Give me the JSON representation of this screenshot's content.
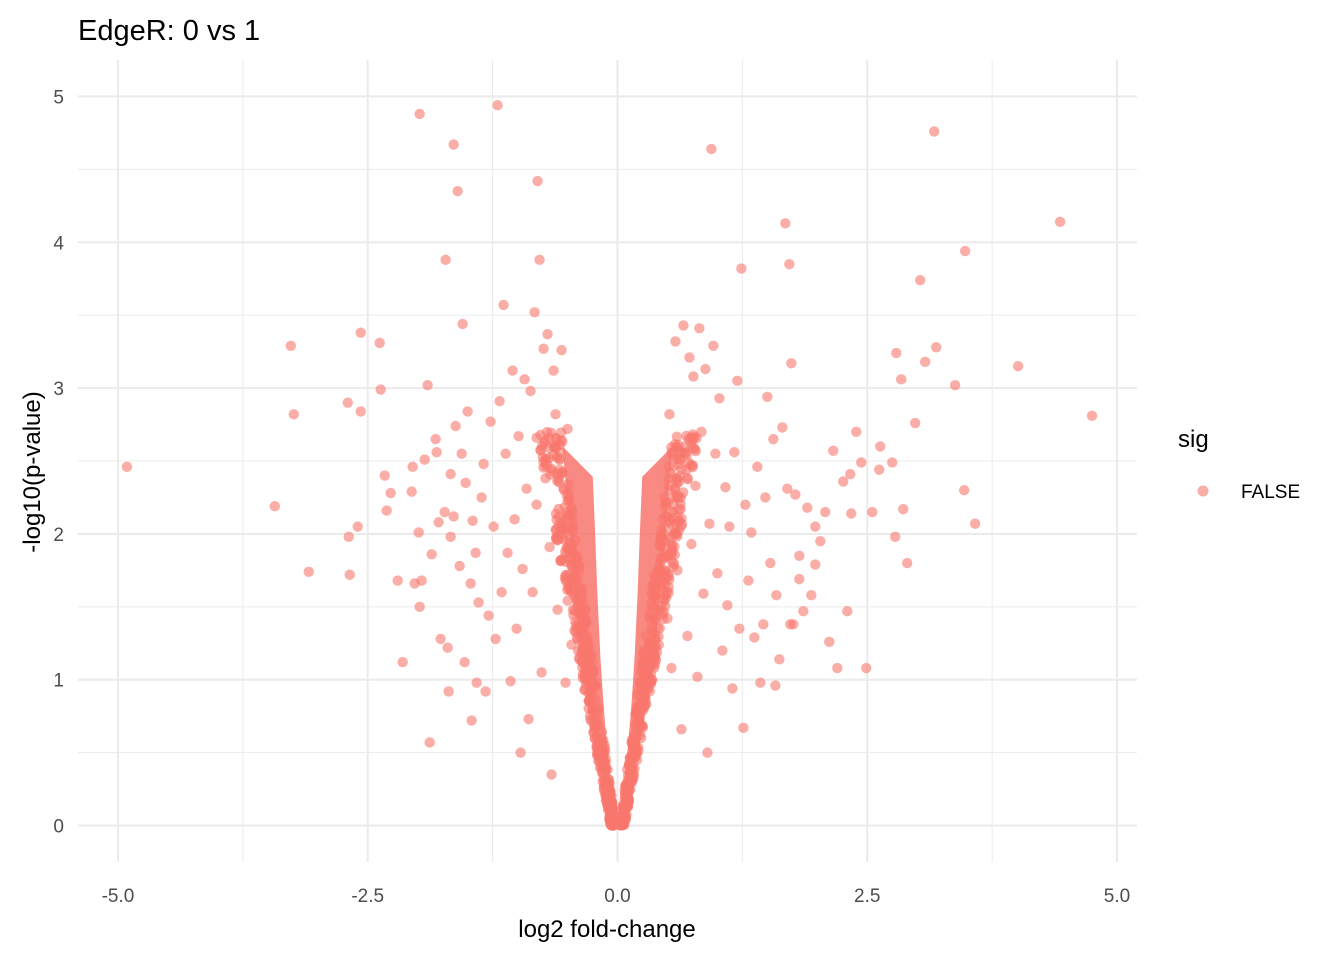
{
  "chart_data": {
    "type": "scatter",
    "title": "EdgeR: 0 vs 1",
    "xlabel": "log2 fold-change",
    "ylabel": "-log10(p-value)",
    "xlim": [
      -5.4,
      5.2
    ],
    "ylim": [
      -0.25,
      5.25
    ],
    "x_ticks": [
      -5.0,
      -2.5,
      0.0,
      2.5,
      5.0
    ],
    "x_tick_labels": [
      "-5.0",
      "-2.5",
      "0.0",
      "2.5",
      "5.0"
    ],
    "y_ticks": [
      0,
      1,
      2,
      3,
      4,
      5
    ],
    "y_tick_labels": [
      "0",
      "1",
      "2",
      "3",
      "4",
      "5"
    ],
    "grid": true,
    "legend": {
      "title": "sig",
      "position": "right",
      "entries": [
        {
          "label": "FALSE",
          "color": "#F8766D"
        }
      ]
    },
    "point_color": "#F8766D",
    "point_alpha": 0.6,
    "series": [
      {
        "name": "FALSE",
        "points": [
          [
            -4.91,
            2.46
          ],
          [
            -3.43,
            2.19
          ],
          [
            -3.27,
            3.29
          ],
          [
            -3.24,
            2.82
          ],
          [
            -3.09,
            1.74
          ],
          [
            -2.7,
            2.9
          ],
          [
            -2.69,
            1.98
          ],
          [
            -2.68,
            1.72
          ],
          [
            -2.57,
            3.38
          ],
          [
            -2.57,
            2.84
          ],
          [
            -2.38,
            3.31
          ],
          [
            -2.37,
            2.99
          ],
          [
            -2.33,
            2.4
          ],
          [
            -2.31,
            2.16
          ],
          [
            -2.27,
            2.28
          ],
          [
            -2.2,
            1.68
          ],
          [
            -2.06,
            2.29
          ],
          [
            -2.05,
            2.46
          ],
          [
            -2.03,
            1.66
          ],
          [
            -1.99,
            2.01
          ],
          [
            -1.98,
            1.5
          ],
          [
            -1.96,
            1.68
          ],
          [
            -1.93,
            2.51
          ],
          [
            -1.9,
            3.02
          ],
          [
            -1.88,
            0.57
          ],
          [
            -1.86,
            1.86
          ],
          [
            -1.82,
            2.65
          ],
          [
            -1.81,
            2.56
          ],
          [
            -1.79,
            2.08
          ],
          [
            -1.77,
            1.28
          ],
          [
            -1.73,
            2.15
          ],
          [
            -1.72,
            3.88
          ],
          [
            -1.7,
            1.22
          ],
          [
            -1.69,
            0.92
          ],
          [
            -1.67,
            2.41
          ],
          [
            -1.67,
            1.98
          ],
          [
            -1.64,
            2.12
          ],
          [
            -1.62,
            2.74
          ],
          [
            -1.6,
            4.35
          ],
          [
            -1.58,
            1.78
          ],
          [
            -1.56,
            2.55
          ],
          [
            -1.55,
            3.44
          ],
          [
            -1.53,
            1.12
          ],
          [
            -1.52,
            2.35
          ],
          [
            -1.5,
            2.84
          ],
          [
            -1.47,
            1.66
          ],
          [
            -1.45,
            2.09
          ],
          [
            -1.42,
            1.87
          ],
          [
            -1.41,
            0.98
          ],
          [
            -1.39,
            1.53
          ],
          [
            -1.36,
            2.25
          ],
          [
            -1.34,
            2.48
          ],
          [
            -1.32,
            0.92
          ],
          [
            -1.29,
            1.44
          ],
          [
            -1.27,
            2.77
          ],
          [
            -1.24,
            2.05
          ],
          [
            -1.22,
            1.28
          ],
          [
            -1.2,
            4.94
          ],
          [
            -1.18,
            2.91
          ],
          [
            -1.16,
            1.6
          ],
          [
            -1.14,
            3.57
          ],
          [
            -1.12,
            2.55
          ],
          [
            -1.1,
            1.87
          ],
          [
            -1.07,
            0.99
          ],
          [
            -1.05,
            3.12
          ],
          [
            -1.03,
            2.1
          ],
          [
            -1.01,
            1.35
          ],
          [
            -0.99,
            2.67
          ],
          [
            -0.97,
            0.5
          ],
          [
            -0.95,
            1.76
          ],
          [
            -0.93,
            3.06
          ],
          [
            -0.91,
            2.31
          ],
          [
            -0.89,
            0.73
          ],
          [
            -0.87,
            2.98
          ],
          [
            -0.85,
            1.6
          ],
          [
            -0.83,
            3.52
          ],
          [
            -0.81,
            2.2
          ],
          [
            -0.8,
            4.42
          ],
          [
            -0.78,
            3.88
          ],
          [
            -0.76,
            1.05
          ],
          [
            -0.74,
            3.27
          ],
          [
            -0.72,
            2.64
          ],
          [
            -0.7,
            3.37
          ],
          [
            -0.68,
            1.91
          ],
          [
            -0.66,
            0.35
          ],
          [
            -0.64,
            3.12
          ],
          [
            -0.62,
            2.82
          ],
          [
            -0.6,
            1.48
          ],
          [
            -0.58,
            2.44
          ],
          [
            -0.56,
            3.26
          ],
          [
            -0.54,
            2.0
          ],
          [
            -0.52,
            0.98
          ],
          [
            -0.5,
            2.72
          ],
          [
            -0.48,
            1.67
          ],
          [
            -0.46,
            1.24
          ],
          [
            -1.98,
            4.88
          ],
          [
            -1.64,
            4.67
          ],
          [
            -2.6,
            2.05
          ],
          [
            -2.15,
            1.12
          ],
          [
            -1.46,
            0.72
          ]
        ]
      }
    ],
    "dense_core": {
      "left_arm": [
        [
          -0.02,
          0.02
        ],
        [
          -0.12,
          0.25
        ],
        [
          -0.22,
          0.55
        ],
        [
          -0.3,
          0.85
        ],
        [
          -0.38,
          1.25
        ],
        [
          -0.45,
          1.75
        ],
        [
          -0.5,
          2.2
        ],
        [
          -0.55,
          2.6
        ]
      ],
      "right_arm": [
        [
          0.02,
          0.02
        ],
        [
          0.12,
          0.25
        ],
        [
          0.22,
          0.55
        ],
        [
          0.3,
          0.85
        ],
        [
          0.38,
          1.25
        ],
        [
          0.45,
          1.75
        ],
        [
          0.5,
          2.2
        ],
        [
          0.55,
          2.6
        ]
      ]
    },
    "right_points": [
      [
        0.48,
        2.21
      ],
      [
        0.5,
        1.42
      ],
      [
        0.52,
        2.82
      ],
      [
        0.54,
        1.08
      ],
      [
        0.56,
        2.46
      ],
      [
        0.58,
        3.32
      ],
      [
        0.6,
        1.75
      ],
      [
        0.62,
        2.09
      ],
      [
        0.64,
        0.66
      ],
      [
        0.66,
        3.43
      ],
      [
        0.68,
        2.6
      ],
      [
        0.7,
        1.3
      ],
      [
        0.72,
        3.21
      ],
      [
        0.74,
        1.93
      ],
      [
        0.76,
        3.08
      ],
      [
        0.78,
        2.33
      ],
      [
        0.8,
        1.02
      ],
      [
        0.82,
        3.41
      ],
      [
        0.84,
        2.7
      ],
      [
        0.86,
        1.59
      ],
      [
        0.88,
        3.13
      ],
      [
        0.9,
        0.5
      ],
      [
        0.92,
        2.07
      ],
      [
        0.94,
        4.64
      ],
      [
        0.96,
        3.29
      ],
      [
        0.98,
        2.55
      ],
      [
        1.0,
        1.73
      ],
      [
        1.02,
        2.93
      ],
      [
        1.05,
        1.2
      ],
      [
        1.08,
        2.32
      ],
      [
        1.1,
        1.51
      ],
      [
        1.12,
        2.05
      ],
      [
        1.15,
        0.94
      ],
      [
        1.17,
        2.56
      ],
      [
        1.2,
        3.05
      ],
      [
        1.22,
        1.35
      ],
      [
        1.24,
        3.82
      ],
      [
        1.26,
        0.67
      ],
      [
        1.28,
        2.2
      ],
      [
        1.31,
        1.68
      ],
      [
        1.34,
        2.01
      ],
      [
        1.37,
        1.29
      ],
      [
        1.4,
        2.46
      ],
      [
        1.43,
        0.98
      ],
      [
        1.46,
        1.38
      ],
      [
        1.48,
        2.25
      ],
      [
        1.5,
        2.94
      ],
      [
        1.53,
        1.8
      ],
      [
        1.56,
        2.65
      ],
      [
        1.59,
        1.58
      ],
      [
        1.62,
        1.14
      ],
      [
        1.65,
        2.73
      ],
      [
        1.68,
        4.13
      ],
      [
        1.7,
        2.31
      ],
      [
        1.72,
        3.85
      ],
      [
        1.74,
        3.17
      ],
      [
        1.76,
        1.38
      ],
      [
        1.78,
        2.27
      ],
      [
        1.82,
        1.85
      ],
      [
        1.86,
        1.47
      ],
      [
        1.9,
        2.18
      ],
      [
        1.94,
        1.58
      ],
      [
        1.98,
        2.05
      ],
      [
        2.03,
        1.95
      ],
      [
        2.08,
        2.15
      ],
      [
        2.12,
        1.26
      ],
      [
        2.16,
        2.57
      ],
      [
        2.2,
        1.08
      ],
      [
        2.26,
        2.36
      ],
      [
        2.3,
        1.47
      ],
      [
        2.34,
        2.14
      ],
      [
        2.39,
        2.7
      ],
      [
        2.44,
        2.49
      ],
      [
        2.49,
        1.08
      ],
      [
        2.55,
        2.15
      ],
      [
        2.62,
        2.44
      ],
      [
        2.75,
        2.49
      ],
      [
        2.78,
        1.98
      ],
      [
        2.79,
        3.24
      ],
      [
        2.84,
        3.06
      ],
      [
        2.86,
        2.17
      ],
      [
        2.9,
        1.8
      ],
      [
        2.98,
        2.76
      ],
      [
        3.03,
        3.74
      ],
      [
        3.08,
        3.18
      ],
      [
        3.17,
        4.76
      ],
      [
        3.19,
        3.28
      ],
      [
        3.38,
        3.02
      ],
      [
        3.47,
        2.3
      ],
      [
        3.48,
        3.94
      ],
      [
        3.58,
        2.07
      ],
      [
        4.01,
        3.15
      ],
      [
        4.43,
        4.14
      ],
      [
        4.75,
        2.81
      ],
      [
        2.63,
        2.6
      ],
      [
        2.33,
        2.41
      ],
      [
        1.82,
        1.69
      ],
      [
        1.98,
        1.79
      ],
      [
        1.73,
        1.38
      ],
      [
        1.58,
        0.96
      ]
    ]
  }
}
